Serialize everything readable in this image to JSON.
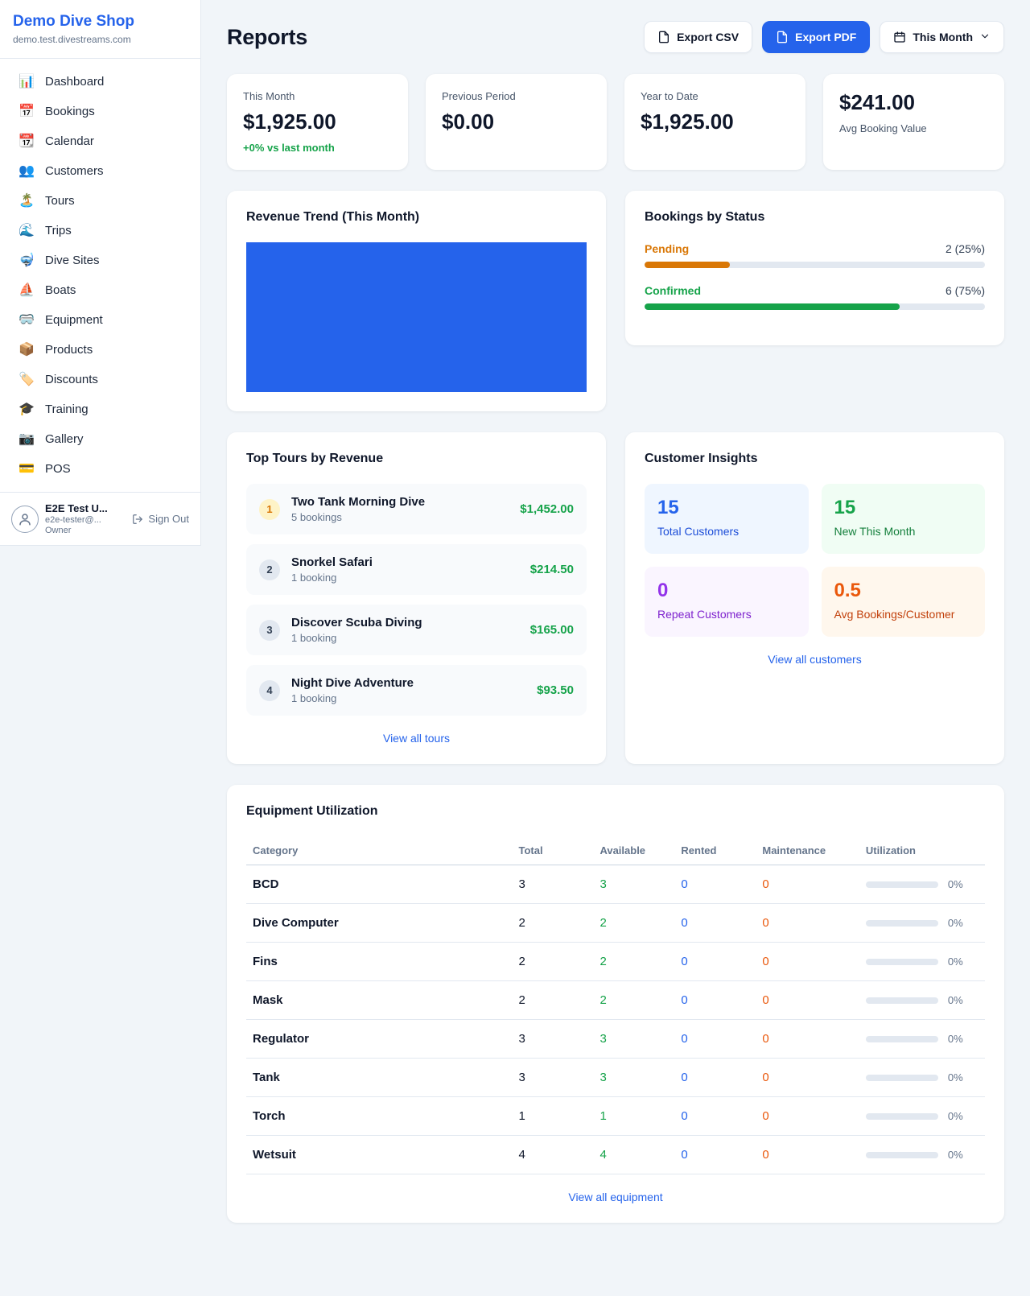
{
  "colors": {
    "accent_blue": "#2563eb",
    "success_green": "#16a34a",
    "pending_orange": "#d97706",
    "maintenance_orange": "#ea580c",
    "repeat_purple": "#9333ea",
    "page_background": "#f1f5f9"
  },
  "sidebar": {
    "shop_name": "Demo Dive Shop",
    "shop_domain": "demo.test.divestreams.com",
    "items": [
      {
        "icon": "📊",
        "label": "Dashboard"
      },
      {
        "icon": "📅",
        "label": "Bookings"
      },
      {
        "icon": "📆",
        "label": "Calendar"
      },
      {
        "icon": "👥",
        "label": "Customers"
      },
      {
        "icon": "🏝️",
        "label": "Tours"
      },
      {
        "icon": "🌊",
        "label": "Trips"
      },
      {
        "icon": "🤿",
        "label": "Dive Sites"
      },
      {
        "icon": "⛵",
        "label": "Boats"
      },
      {
        "icon": "🥽",
        "label": "Equipment"
      },
      {
        "icon": "📦",
        "label": "Products"
      },
      {
        "icon": "🏷️",
        "label": "Discounts"
      },
      {
        "icon": "🎓",
        "label": "Training"
      },
      {
        "icon": "📷",
        "label": "Gallery"
      },
      {
        "icon": "💳",
        "label": "POS"
      }
    ],
    "user": {
      "name": "E2E Test U...",
      "email": "e2e-tester@...",
      "role": "Owner",
      "sign_out_label": "Sign Out"
    }
  },
  "header": {
    "title": "Reports",
    "export_csv_label": "Export CSV",
    "export_pdf_label": "Export PDF",
    "period_selector": "This Month"
  },
  "stats": {
    "this_month": {
      "label": "This Month",
      "value": "$1,925.00",
      "delta": "+0% vs last month"
    },
    "previous_period": {
      "label": "Previous Period",
      "value": "$0.00"
    },
    "year_to_date": {
      "label": "Year to Date",
      "value": "$1,925.00"
    },
    "avg_booking": {
      "value": "$241.00",
      "label": "Avg Booking Value"
    }
  },
  "revenue_trend": {
    "title": "Revenue Trend (This Month)"
  },
  "bookings_by_status": {
    "title": "Bookings by Status",
    "rows": [
      {
        "label": "Pending",
        "value": "2 (25%)",
        "percent": 25
      },
      {
        "label": "Confirmed",
        "value": "6 (75%)",
        "percent": 75
      }
    ]
  },
  "top_tours": {
    "title": "Top Tours by Revenue",
    "items": [
      {
        "rank": "1",
        "name": "Two Tank Morning Dive",
        "bookings": "5 bookings",
        "revenue": "$1,452.00"
      },
      {
        "rank": "2",
        "name": "Snorkel Safari",
        "bookings": "1 booking",
        "revenue": "$214.50"
      },
      {
        "rank": "3",
        "name": "Discover Scuba Diving",
        "bookings": "1 booking",
        "revenue": "$165.00"
      },
      {
        "rank": "4",
        "name": "Night Dive Adventure",
        "bookings": "1 booking",
        "revenue": "$93.50"
      }
    ],
    "view_all": "View all tours"
  },
  "customer_insights": {
    "title": "Customer Insights",
    "cards": [
      {
        "value": "15",
        "label": "Total Customers"
      },
      {
        "value": "15",
        "label": "New This Month"
      },
      {
        "value": "0",
        "label": "Repeat Customers"
      },
      {
        "value": "0.5",
        "label": "Avg Bookings/Customer"
      }
    ],
    "view_all": "View all customers"
  },
  "equipment": {
    "title": "Equipment Utilization",
    "columns": [
      "Category",
      "Total",
      "Available",
      "Rented",
      "Maintenance",
      "Utilization"
    ],
    "rows": [
      {
        "category": "BCD",
        "total": "3",
        "available": "3",
        "rented": "0",
        "maintenance": "0",
        "utilization": "0%",
        "utilization_percent": 0
      },
      {
        "category": "Dive Computer",
        "total": "2",
        "available": "2",
        "rented": "0",
        "maintenance": "0",
        "utilization": "0%",
        "utilization_percent": 0
      },
      {
        "category": "Fins",
        "total": "2",
        "available": "2",
        "rented": "0",
        "maintenance": "0",
        "utilization": "0%",
        "utilization_percent": 0
      },
      {
        "category": "Mask",
        "total": "2",
        "available": "2",
        "rented": "0",
        "maintenance": "0",
        "utilization": "0%",
        "utilization_percent": 0
      },
      {
        "category": "Regulator",
        "total": "3",
        "available": "3",
        "rented": "0",
        "maintenance": "0",
        "utilization": "0%",
        "utilization_percent": 0
      },
      {
        "category": "Tank",
        "total": "3",
        "available": "3",
        "rented": "0",
        "maintenance": "0",
        "utilization": "0%",
        "utilization_percent": 0
      },
      {
        "category": "Torch",
        "total": "1",
        "available": "1",
        "rented": "0",
        "maintenance": "0",
        "utilization": "0%",
        "utilization_percent": 0
      },
      {
        "category": "Wetsuit",
        "total": "4",
        "available": "4",
        "rented": "0",
        "maintenance": "0",
        "utilization": "0%",
        "utilization_percent": 0
      }
    ],
    "view_all": "View all equipment"
  },
  "chart_data": [
    {
      "type": "area",
      "title": "Revenue Trend (This Month)",
      "color": "#2563eb"
    },
    {
      "type": "bar",
      "title": "Bookings by Status",
      "categories": [
        "Pending",
        "Confirmed"
      ],
      "values": [
        25,
        75
      ],
      "labels": [
        "2 (25%)",
        "6 (75%)"
      ]
    }
  ]
}
